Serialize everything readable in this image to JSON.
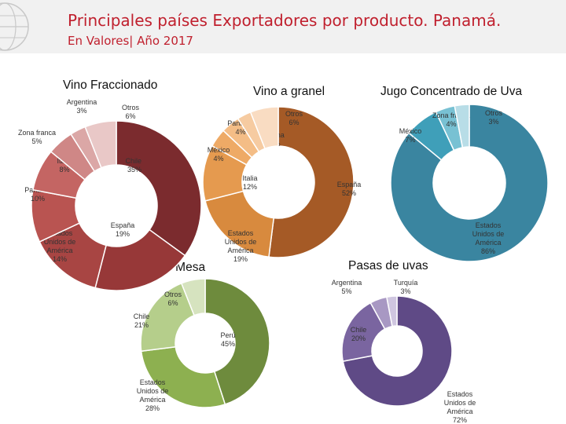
{
  "header": {
    "title": "Principales países Exportadores por producto. Panamá.",
    "subtitle": "En Valores| Año 2017"
  },
  "chart_data": [
    {
      "type": "pie",
      "title": "Vino Fraccionado",
      "slices": [
        {
          "label": "Chile",
          "value": 35,
          "color": "#7b2b2e"
        },
        {
          "label": "España",
          "value": 19,
          "color": "#973838"
        },
        {
          "label": "Estados Unidos de América",
          "value": 14,
          "color": "#a84543"
        },
        {
          "label": "Panamá",
          "value": 10,
          "color": "#b95451"
        },
        {
          "label": "Italia",
          "value": 8,
          "color": "#c46563"
        },
        {
          "label": "Zona franca",
          "value": 5,
          "color": "#cf8786"
        },
        {
          "label": "Argentina",
          "value": 3,
          "color": "#dba7a6"
        },
        {
          "label": "Otros",
          "value": 6,
          "color": "#e9c8c7"
        }
      ]
    },
    {
      "type": "pie",
      "title": "Vino a granel",
      "slices": [
        {
          "label": "España",
          "value": 52,
          "color": "#a55a26"
        },
        {
          "label": "Estados Unidos de América",
          "value": 19,
          "color": "#d88a3e"
        },
        {
          "label": "Italia",
          "value": 12,
          "color": "#e59a4f"
        },
        {
          "label": "México",
          "value": 4,
          "color": "#eeaa66"
        },
        {
          "label": "Panamá",
          "value": 4,
          "color": "#f4bd86"
        },
        {
          "label": "China",
          "value": 3,
          "color": "#f6cba1"
        },
        {
          "label": "Otros",
          "value": 6,
          "color": "#f9dcc2"
        }
      ]
    },
    {
      "type": "pie",
      "title": "Jugo Concentrado de Uva",
      "slices": [
        {
          "label": "Estados Unidos de América",
          "value": 86,
          "color": "#3a85a0"
        },
        {
          "label": "México",
          "value": 7,
          "color": "#3f9fb9"
        },
        {
          "label": "Zona franca",
          "value": 4,
          "color": "#78c1d3"
        },
        {
          "label": "Otros",
          "value": 3,
          "color": "#b8dde7"
        }
      ]
    },
    {
      "type": "pie",
      "title": "Uvas de Mesa",
      "slices": [
        {
          "label": "Perú",
          "value": 45,
          "color": "#6e8b3d"
        },
        {
          "label": "Estados Unidos de América",
          "value": 28,
          "color": "#8db050"
        },
        {
          "label": "Chile",
          "value": 21,
          "color": "#b5ce8b"
        },
        {
          "label": "Otros",
          "value": 6,
          "color": "#d6e3bf"
        }
      ]
    },
    {
      "type": "pie",
      "title": "Pasas de uvas",
      "slices": [
        {
          "label": "Estados Unidos de América",
          "value": 72,
          "color": "#5f4a86"
        },
        {
          "label": "Chile",
          "value": 20,
          "color": "#7a65a0"
        },
        {
          "label": "Argentina",
          "value": 5,
          "color": "#a898c3"
        },
        {
          "label": "Turquía",
          "value": 3,
          "color": "#cfc6e0"
        }
      ]
    }
  ]
}
